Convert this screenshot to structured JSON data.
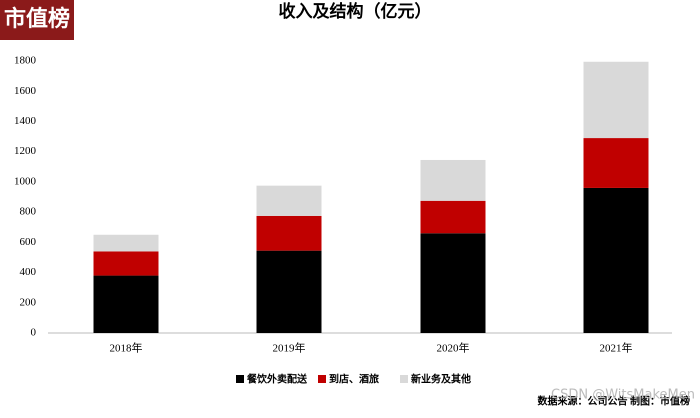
{
  "logo": "市值榜",
  "chart_data": {
    "type": "stacked-bar",
    "title": "收入及结构（亿元）",
    "categories": [
      "2018年",
      "2019年",
      "2020年",
      "2021年"
    ],
    "series": [
      {
        "name": "餐饮外卖配送",
        "color": "#000000",
        "values": [
          380,
          545,
          660,
          960
        ]
      },
      {
        "name": "到店、酒旅",
        "color": "#c00000",
        "values": [
          160,
          230,
          215,
          330
        ]
      },
      {
        "name": "新业务及其他",
        "color": "#d9d9d9",
        "values": [
          110,
          200,
          270,
          505
        ]
      }
    ],
    "ylim": [
      0,
      1800
    ],
    "yticks": [
      0,
      200,
      400,
      600,
      800,
      1000,
      1200,
      1400,
      1600,
      1800
    ],
    "grid": false,
    "legend": "bottom"
  },
  "source": "数据来源：公司公告  制图：市值榜",
  "watermark": "CSDN @WitsMakeMen"
}
